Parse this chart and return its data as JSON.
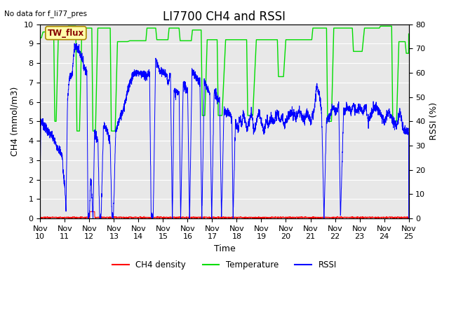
{
  "title": "LI7700 CH4 and RSSI",
  "top_left_text": "No data for f_li77_pres",
  "box_label": "TW_flux",
  "ylabel_left": "CH4 (mmol/m3)",
  "ylabel_right": "RSSI (%)",
  "xlabel": "Time",
  "ylim_left": [
    0,
    10.0
  ],
  "ylim_right": [
    0,
    80
  ],
  "yticks_left": [
    0.0,
    1.0,
    2.0,
    3.0,
    4.0,
    5.0,
    6.0,
    7.0,
    8.0,
    9.0,
    10.0
  ],
  "yticks_right": [
    0,
    10,
    20,
    30,
    40,
    50,
    60,
    70,
    80
  ],
  "xtick_labels": [
    "Nov\n10",
    "Nov\n11",
    "Nov\n12",
    "Nov\n13",
    "Nov\n14",
    "Nov\n15",
    "Nov\n16",
    "Nov\n17",
    "Nov\n18",
    "Nov\n19",
    "Nov\n20",
    "Nov\n21",
    "Nov\n22",
    "Nov\n23",
    "Nov\n24",
    "Nov\n25"
  ],
  "legend_labels": [
    "CH4 density",
    "Temperature",
    "RSSI"
  ],
  "ch4_color": "#ff0000",
  "temp_color": "#00dd00",
  "rssi_color": "#0000ff",
  "bg_color": "#e8e8e8",
  "grid_color": "#ffffff",
  "title_fontsize": 12,
  "label_fontsize": 9,
  "tick_fontsize": 8,
  "box_facecolor": "#ffffaa",
  "box_edgecolor": "#aa8800",
  "box_textcolor": "#880000"
}
